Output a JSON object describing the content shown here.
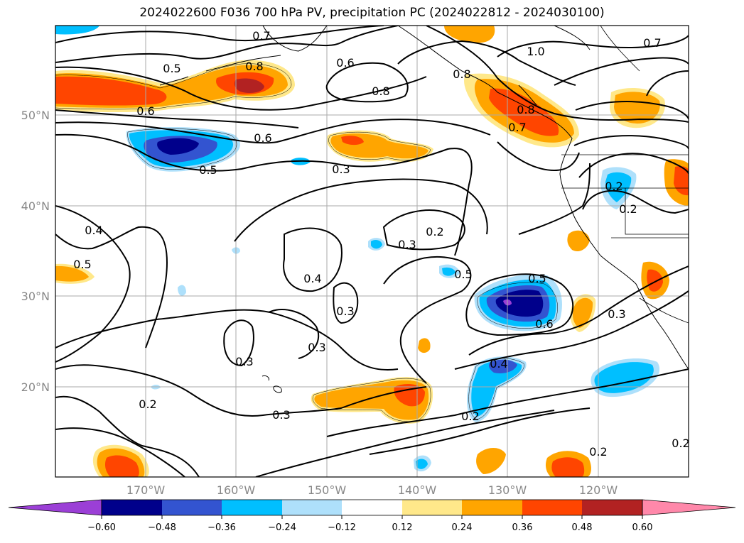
{
  "title": "2024022600 F036 700 hPa PV, precipitation PC (2024022812 - 2024030100)",
  "lon_labels": [
    "170°W",
    "160°W",
    "150°W",
    "140°W",
    "130°W",
    "120°W"
  ],
  "lat_labels": [
    "50°N",
    "40°N",
    "30°N",
    "20°N"
  ],
  "colorbar": {
    "ticks": [
      "−0.60",
      "−0.48",
      "−0.36",
      "−0.24",
      "−0.12",
      "0.12",
      "0.24",
      "0.36",
      "0.48",
      "0.60"
    ],
    "colors": [
      "#9b3fd6",
      "#00008b",
      "#3354d0",
      "#00bfff",
      "#aee0fb",
      "#ffffff",
      "#ffe88a",
      "#ffa500",
      "#ff4500",
      "#b22222",
      "#ff88aa"
    ]
  },
  "contour_labels": [
    "0.7",
    "0.6",
    "0.8",
    "1.0",
    "0.7",
    "0.5",
    "0.8",
    "0.8",
    "0.8",
    "0.6",
    "0.7",
    "0.6",
    "0.5",
    "0.3",
    "0.4",
    "0.5",
    "0.2",
    "0.3",
    "0.4",
    "0.3",
    "0.5",
    "0.5",
    "0.6",
    "0.3",
    "0.3",
    "0.3",
    "0.4",
    "0.3",
    "0.2",
    "0.2",
    "0.2",
    "0.2",
    "0.2",
    "0.2"
  ]
}
